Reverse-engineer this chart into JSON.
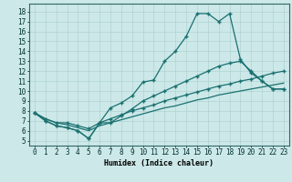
{
  "xlabel": "Humidex (Indice chaleur)",
  "bg_color": "#cce8e8",
  "grid_color": "#aacece",
  "line_color": "#1a7070",
  "xlim": [
    -0.5,
    23.5
  ],
  "ylim": [
    4.5,
    18.8
  ],
  "xtick_labels": [
    "0",
    "1",
    "2",
    "3",
    "4",
    "5",
    "6",
    "7",
    "8",
    "9",
    "10",
    "11",
    "12",
    "13",
    "14",
    "15",
    "16",
    "17",
    "18",
    "19",
    "20",
    "21",
    "22",
    "23"
  ],
  "xtick_positions": [
    0,
    1,
    2,
    3,
    4,
    5,
    6,
    7,
    8,
    9,
    10,
    11,
    12,
    13,
    14,
    15,
    16,
    17,
    18,
    19,
    20,
    21,
    22,
    23
  ],
  "ytick_positions": [
    5,
    6,
    7,
    8,
    9,
    10,
    11,
    12,
    13,
    14,
    15,
    16,
    17,
    18
  ],
  "line1_x": [
    0,
    1,
    2,
    3,
    4,
    5,
    6,
    7,
    8,
    9,
    10,
    11,
    12,
    13,
    14,
    15,
    16,
    17,
    18,
    19,
    20,
    21,
    22,
    23
  ],
  "line1_y": [
    7.8,
    7.0,
    6.5,
    6.3,
    6.0,
    5.2,
    6.8,
    8.3,
    8.8,
    9.5,
    10.9,
    11.1,
    13.0,
    14.0,
    15.5,
    17.8,
    17.8,
    17.0,
    17.8,
    13.2,
    11.8,
    11.0,
    10.2,
    10.2
  ],
  "line2_x": [
    0,
    1,
    2,
    3,
    4,
    5,
    6,
    7,
    8,
    9,
    10,
    11,
    12,
    13,
    14,
    15,
    16,
    17,
    18,
    19,
    20,
    21,
    22,
    23
  ],
  "line2_y": [
    7.8,
    7.0,
    6.5,
    6.3,
    6.0,
    5.2,
    6.8,
    6.8,
    7.5,
    8.2,
    9.0,
    9.5,
    10.0,
    10.5,
    11.0,
    11.5,
    12.0,
    12.5,
    12.8,
    13.0,
    12.0,
    11.0,
    10.2,
    10.2
  ],
  "line3_x": [
    0,
    1,
    2,
    3,
    4,
    5,
    6,
    7,
    8,
    9,
    10,
    11,
    12,
    13,
    14,
    15,
    16,
    17,
    18,
    19,
    20,
    21,
    22,
    23
  ],
  "line3_y": [
    7.8,
    7.2,
    6.8,
    6.8,
    6.5,
    6.2,
    6.8,
    7.2,
    7.6,
    8.0,
    8.3,
    8.6,
    9.0,
    9.3,
    9.6,
    9.9,
    10.2,
    10.5,
    10.7,
    11.0,
    11.2,
    11.5,
    11.8,
    12.0
  ],
  "line4_x": [
    0,
    1,
    2,
    3,
    4,
    5,
    6,
    7,
    8,
    9,
    10,
    11,
    12,
    13,
    14,
    15,
    16,
    17,
    18,
    19,
    20,
    21,
    22,
    23
  ],
  "line4_y": [
    7.8,
    7.2,
    6.8,
    6.6,
    6.3,
    6.0,
    6.5,
    6.8,
    7.1,
    7.4,
    7.7,
    8.0,
    8.3,
    8.5,
    8.8,
    9.1,
    9.3,
    9.6,
    9.8,
    10.0,
    10.2,
    10.4,
    10.6,
    10.8
  ]
}
